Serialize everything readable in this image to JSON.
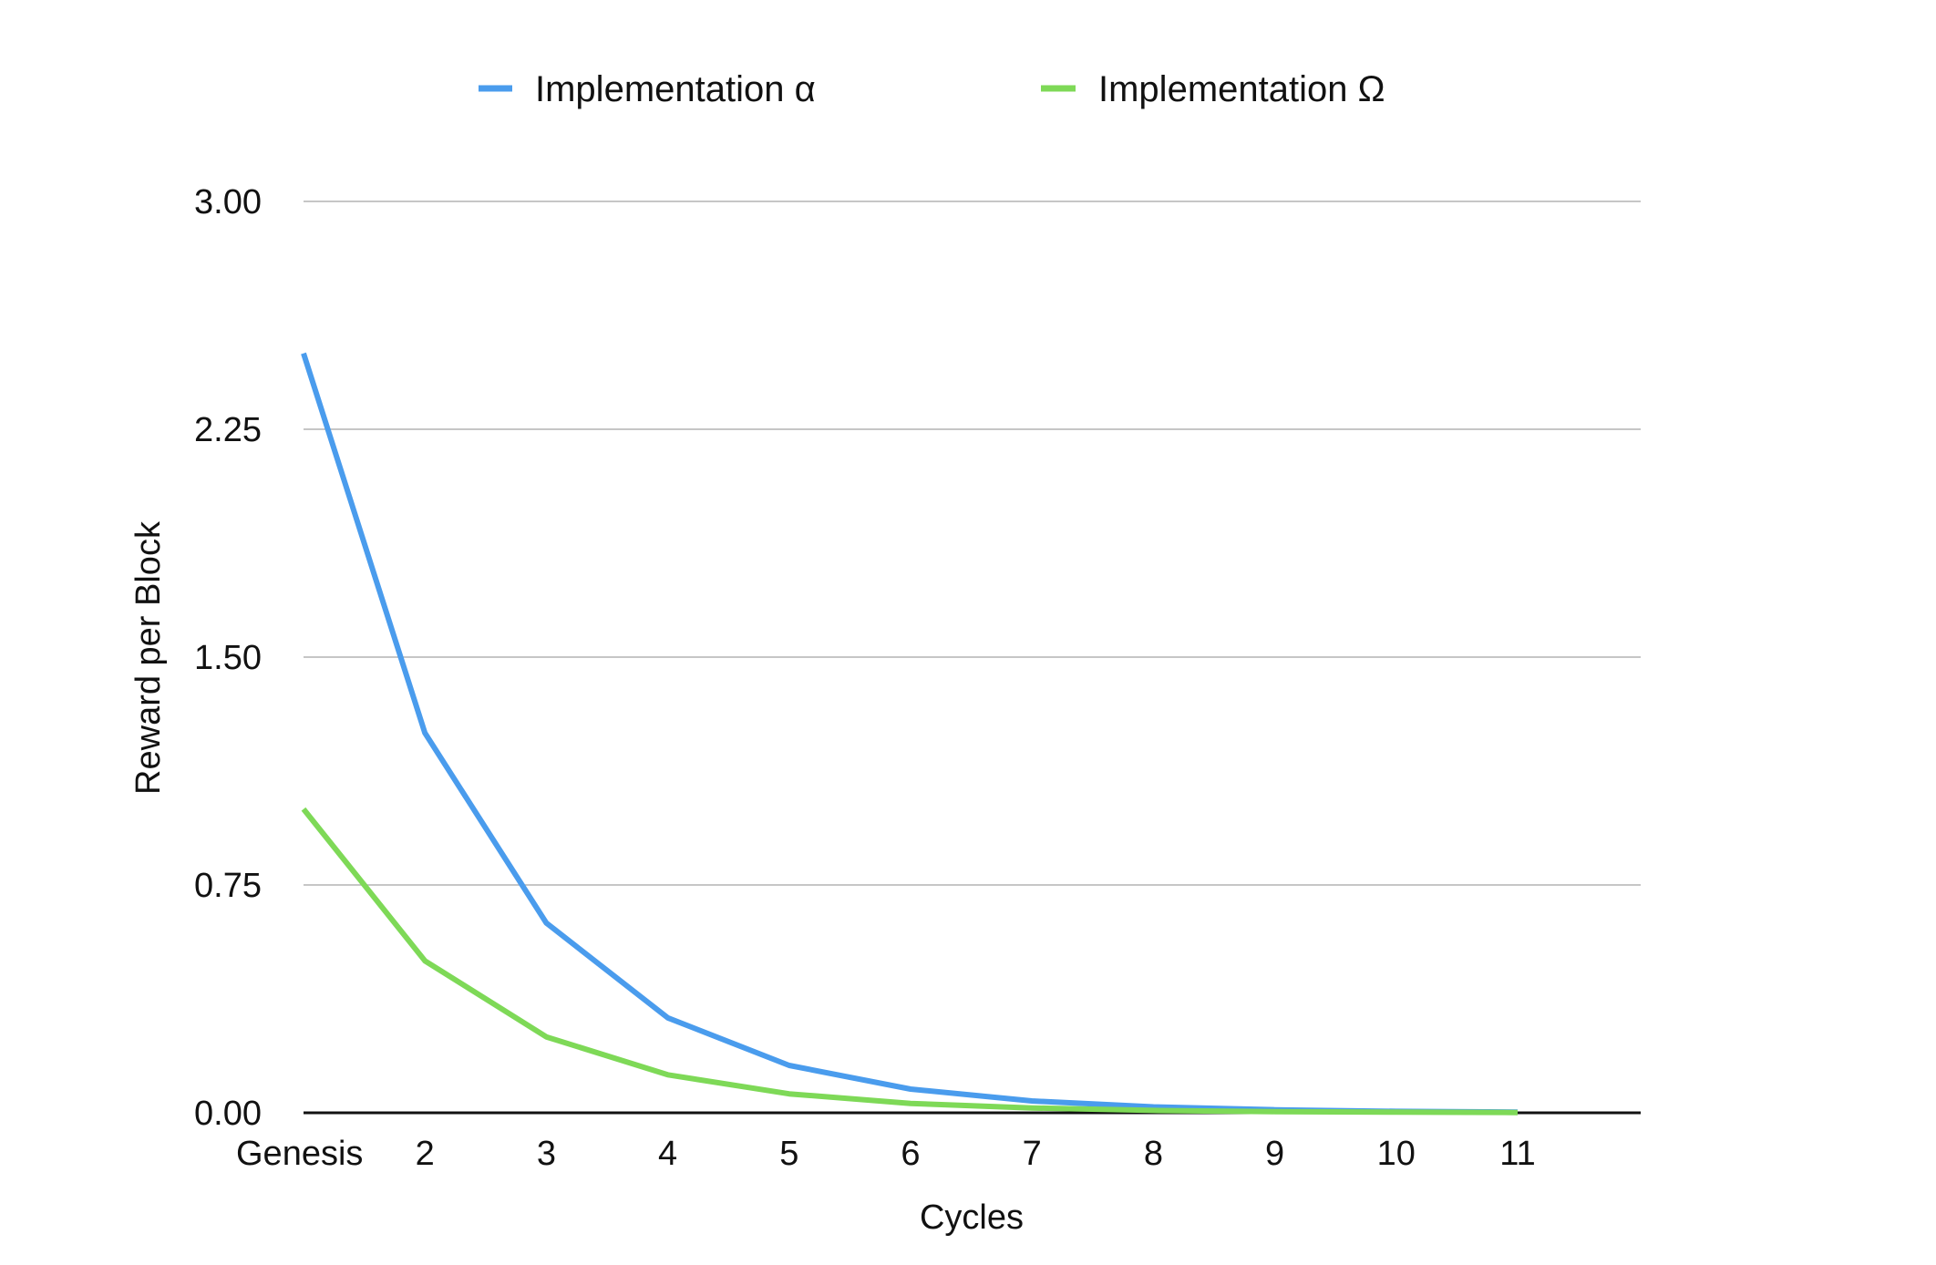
{
  "chart_data": {
    "type": "line",
    "title": "",
    "xlabel": "Cycles",
    "ylabel": "Reward per Block",
    "categories": [
      "Genesis",
      "2",
      "3",
      "4",
      "5",
      "6",
      "7",
      "8",
      "9",
      "10",
      "11"
    ],
    "yticks": [
      "0.00",
      "0.75",
      "1.50",
      "2.25",
      "3.00"
    ],
    "ylim": [
      0,
      3
    ],
    "grid": true,
    "legend_position": "top",
    "series": [
      {
        "name": "Implementation  α",
        "color": "#4a9ced",
        "values": [
          2.5,
          1.25,
          0.625,
          0.3125,
          0.156,
          0.078,
          0.039,
          0.0195,
          0.0098,
          0.0049,
          0.0024
        ]
      },
      {
        "name": "Implementation Ω",
        "color": "#7ed957",
        "values": [
          1.0,
          0.5,
          0.25,
          0.125,
          0.0625,
          0.031,
          0.016,
          0.0078,
          0.0039,
          0.002,
          0.001
        ]
      }
    ]
  }
}
